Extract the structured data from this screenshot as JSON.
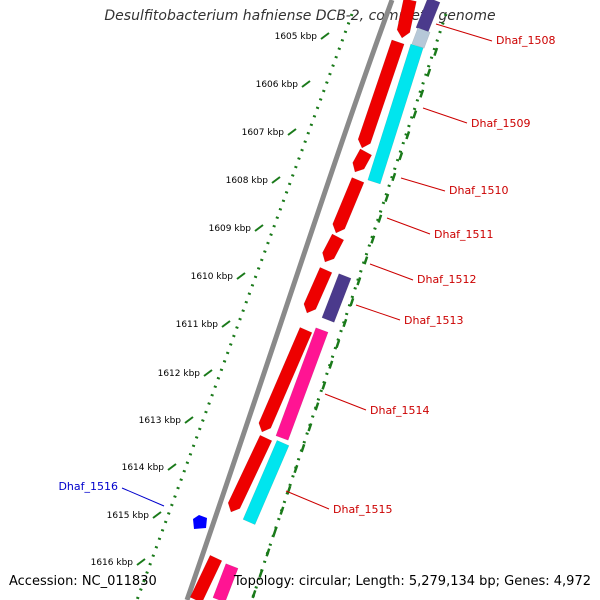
{
  "title": "Desulfitobacterium hafniense DCB-2, complete genome",
  "footer": {
    "accession": "Accession: NC_011830",
    "summary": "Topology: circular; Length: 5,279,134 bp; Genes: 4,972"
  },
  "colors": {
    "backbone": "#8a8a8a",
    "gc_dots": "#1a7a1a",
    "gene_label": "#cc0000",
    "highlight_label": "#0000cc",
    "red_gene": "#ee0000",
    "cyan_gene": "#00e5ee",
    "pink_gene": "#ff1493",
    "purple_gene": "#4b3a8c",
    "blue_marker": "#0000ff"
  },
  "ticks": [
    "1605 kbp",
    "1606 kbp",
    "1607 kbp",
    "1608 kbp",
    "1609 kbp",
    "1610 kbp",
    "1611 kbp",
    "1612 kbp",
    "1613 kbp",
    "1614 kbp",
    "1615 kbp",
    "1616 kbp"
  ],
  "genes": [
    {
      "label": "Dhaf_1508"
    },
    {
      "label": "Dhaf_1509"
    },
    {
      "label": "Dhaf_1510"
    },
    {
      "label": "Dhaf_1511"
    },
    {
      "label": "Dhaf_1512"
    },
    {
      "label": "Dhaf_1513"
    },
    {
      "label": "Dhaf_1514"
    },
    {
      "label": "Dhaf_1515"
    }
  ],
  "highlight": {
    "label": "Dhaf_1516"
  }
}
